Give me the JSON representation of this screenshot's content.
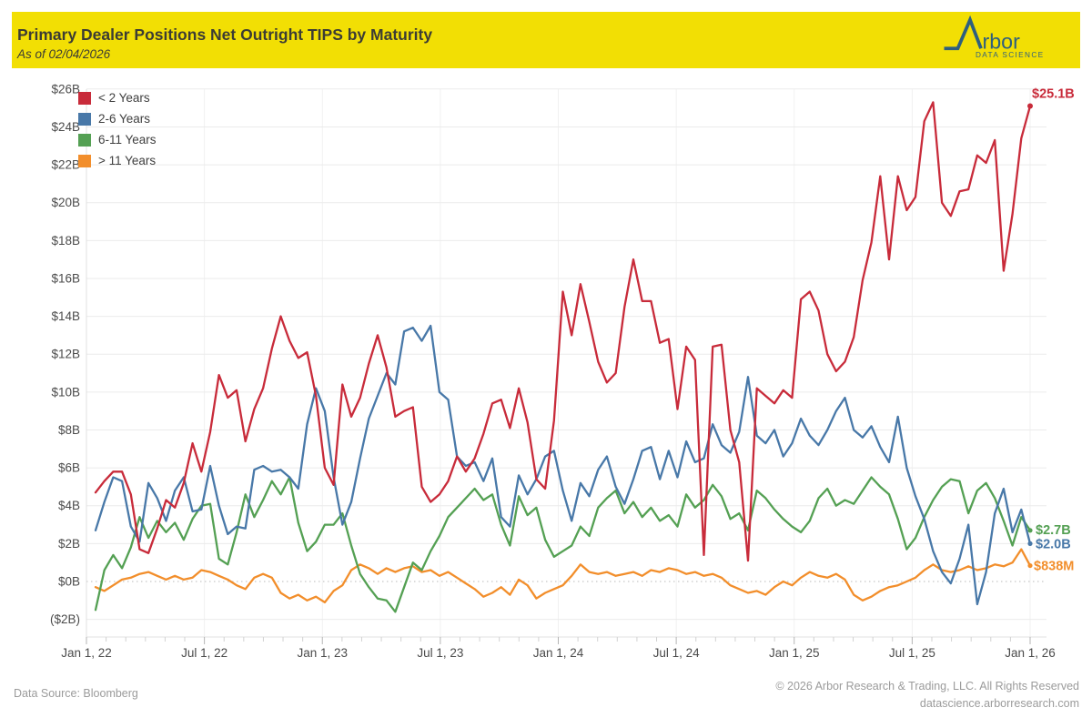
{
  "header": {
    "title": "Primary Dealer Positions Net Outright TIPS by Maturity",
    "subtitle": "As of 02/04/2026",
    "background_color": "#F2DF04",
    "text_color": "#3C3C34",
    "logo": {
      "brand": "Arbor",
      "tagline": "DATA SCIENCE",
      "color": "#2E5F7E"
    }
  },
  "footer": {
    "source": "Data Source: Bloomberg",
    "copyright": "© 2026 Arbor Research & Trading, LLC. All Rights Reserved",
    "website": "datascience.arborresearch.com"
  },
  "chart_data": {
    "type": "line",
    "title": "Primary Dealer Positions Net Outright TIPS by Maturity",
    "x_start": "2022-01-05",
    "x_end": "2026-02-04",
    "x_sampling": "biweekly (107 points per series)",
    "x_tick_labels": [
      "Jan 1, 22",
      "Jul 1, 22",
      "Jan 1, 23",
      "Jul 1, 23",
      "Jan 1, 24",
      "Jul 1, 24",
      "Jan 1, 25",
      "Jul 1, 25",
      "Jan 1, 26"
    ],
    "y_tick_labels": [
      "$26B",
      "$24B",
      "$22B",
      "$20B",
      "$18B",
      "$16B",
      "$14B",
      "$12B",
      "$10B",
      "$8B",
      "$6B",
      "$4B",
      "$2B",
      "$0B",
      "($2B)"
    ],
    "ylim": [
      -2,
      26
    ],
    "y_step": 2,
    "y_unit": "USD billions",
    "grid": {
      "horizontal": true,
      "vertical_half_year": true,
      "zero_line": "dotted",
      "monthly_minor_ticks": true
    },
    "legend_position": "top-left",
    "series": [
      {
        "name": "< 2 Years",
        "color": "#C82B3A",
        "end_label": "$25.1B",
        "end_value": 25.1,
        "values": [
          4.7,
          5.3,
          5.8,
          5.8,
          4.6,
          1.7,
          1.5,
          2.8,
          4.3,
          3.9,
          5.2,
          7.3,
          5.8,
          7.9,
          10.9,
          9.7,
          10.1,
          7.4,
          9.1,
          10.2,
          12.3,
          14.0,
          12.7,
          11.8,
          12.1,
          9.8,
          6.0,
          5.1,
          10.4,
          8.7,
          9.7,
          11.5,
          13.0,
          11.3,
          8.7,
          9.0,
          9.2,
          5.0,
          4.2,
          4.6,
          5.3,
          6.6,
          5.8,
          6.5,
          7.8,
          9.4,
          9.6,
          8.1,
          10.2,
          8.4,
          5.4,
          4.9,
          8.5,
          15.3,
          13.0,
          15.7,
          13.7,
          11.6,
          10.5,
          11.0,
          14.5,
          17.0,
          14.8,
          14.8,
          12.6,
          12.8,
          9.1,
          12.4,
          11.7,
          1.4,
          12.4,
          12.5,
          8.0,
          6.3,
          1.1,
          10.2,
          9.8,
          9.4,
          10.1,
          9.7,
          14.9,
          15.3,
          14.3,
          12.0,
          11.1,
          11.6,
          12.9,
          15.9,
          17.9,
          21.4,
          17.0,
          21.4,
          19.6,
          20.3,
          24.3,
          25.3,
          20.0,
          19.3,
          20.6,
          20.7,
          22.5,
          22.1,
          23.3,
          16.4,
          19.4,
          23.4,
          25.1
        ]
      },
      {
        "name": "2-6 Years",
        "color": "#4878A8",
        "end_label": "$2.0B",
        "end_value": 2.0,
        "values": [
          2.7,
          4.2,
          5.5,
          5.3,
          2.9,
          2.1,
          5.2,
          4.4,
          3.2,
          4.8,
          5.5,
          3.7,
          3.8,
          6.1,
          4.0,
          2.5,
          2.9,
          2.8,
          5.9,
          6.1,
          5.8,
          5.9,
          5.5,
          4.9,
          8.3,
          10.2,
          9.0,
          5.5,
          3.0,
          4.2,
          6.5,
          8.6,
          9.8,
          11.0,
          10.4,
          13.2,
          13.4,
          12.7,
          13.5,
          10.0,
          9.6,
          6.6,
          6.1,
          6.3,
          5.3,
          6.5,
          3.4,
          2.9,
          5.6,
          4.6,
          5.4,
          6.6,
          6.9,
          4.8,
          3.2,
          5.2,
          4.5,
          5.9,
          6.6,
          5.0,
          4.1,
          5.4,
          6.9,
          7.1,
          5.4,
          6.9,
          5.5,
          7.4,
          6.3,
          6.5,
          8.3,
          7.2,
          6.8,
          7.9,
          10.8,
          7.7,
          7.3,
          8.0,
          6.6,
          7.3,
          8.6,
          7.7,
          7.2,
          8.0,
          9.0,
          9.7,
          8.0,
          7.6,
          8.2,
          7.1,
          6.3,
          8.7,
          6.0,
          4.5,
          3.3,
          1.6,
          0.5,
          -0.1,
          1.2,
          3.0,
          -1.2,
          0.5,
          3.6,
          4.9,
          2.6,
          3.8,
          2.0
        ]
      },
      {
        "name": "6-11 Years",
        "color": "#54A053",
        "end_label": "$2.7B",
        "end_value": 2.7,
        "values": [
          -1.5,
          0.6,
          1.4,
          0.7,
          1.8,
          3.4,
          2.3,
          3.2,
          2.6,
          3.1,
          2.2,
          3.3,
          4.0,
          4.1,
          1.2,
          0.9,
          2.6,
          4.6,
          3.4,
          4.3,
          5.3,
          4.6,
          5.5,
          3.1,
          1.6,
          2.1,
          3.0,
          3.0,
          3.6,
          1.9,
          0.4,
          -0.3,
          -0.9,
          -1.0,
          -1.6,
          -0.3,
          1.0,
          0.6,
          1.6,
          2.4,
          3.4,
          3.9,
          4.4,
          4.9,
          4.3,
          4.6,
          3.0,
          1.9,
          4.5,
          3.5,
          3.9,
          2.2,
          1.3,
          1.6,
          1.9,
          2.9,
          2.4,
          3.9,
          4.4,
          4.8,
          3.6,
          4.2,
          3.4,
          3.9,
          3.2,
          3.5,
          2.9,
          4.6,
          3.9,
          4.3,
          5.1,
          4.5,
          3.3,
          3.6,
          2.7,
          4.8,
          4.4,
          3.8,
          3.3,
          2.9,
          2.6,
          3.2,
          4.4,
          4.9,
          4.0,
          4.3,
          4.1,
          4.8,
          5.5,
          5.0,
          4.6,
          3.3,
          1.7,
          2.3,
          3.4,
          4.3,
          5.0,
          5.4,
          5.3,
          3.6,
          4.8,
          5.2,
          4.4,
          3.2,
          1.9,
          3.4,
          2.7
        ]
      },
      {
        "name": "> 11 Years",
        "color": "#F28E2B",
        "end_label": "$838M",
        "end_value": 0.838,
        "values": [
          -0.3,
          -0.5,
          -0.2,
          0.1,
          0.2,
          0.4,
          0.5,
          0.3,
          0.1,
          0.3,
          0.1,
          0.2,
          0.6,
          0.5,
          0.3,
          0.1,
          -0.2,
          -0.4,
          0.2,
          0.4,
          0.2,
          -0.6,
          -0.9,
          -0.7,
          -1.0,
          -0.8,
          -1.1,
          -0.5,
          -0.2,
          0.6,
          0.9,
          0.7,
          0.4,
          0.7,
          0.5,
          0.7,
          0.8,
          0.5,
          0.6,
          0.3,
          0.5,
          0.2,
          -0.1,
          -0.4,
          -0.8,
          -0.6,
          -0.3,
          -0.7,
          0.1,
          -0.2,
          -0.9,
          -0.6,
          -0.4,
          -0.2,
          0.3,
          0.9,
          0.5,
          0.4,
          0.5,
          0.3,
          0.4,
          0.5,
          0.3,
          0.6,
          0.5,
          0.7,
          0.6,
          0.4,
          0.5,
          0.3,
          0.4,
          0.2,
          -0.2,
          -0.4,
          -0.6,
          -0.5,
          -0.7,
          -0.3,
          0.0,
          -0.2,
          0.2,
          0.5,
          0.3,
          0.2,
          0.4,
          0.1,
          -0.7,
          -1.0,
          -0.8,
          -0.5,
          -0.3,
          -0.2,
          0.0,
          0.2,
          0.6,
          0.9,
          0.6,
          0.5,
          0.6,
          0.8,
          0.6,
          0.7,
          0.9,
          0.8,
          1.0,
          1.7,
          0.838
        ]
      }
    ]
  }
}
